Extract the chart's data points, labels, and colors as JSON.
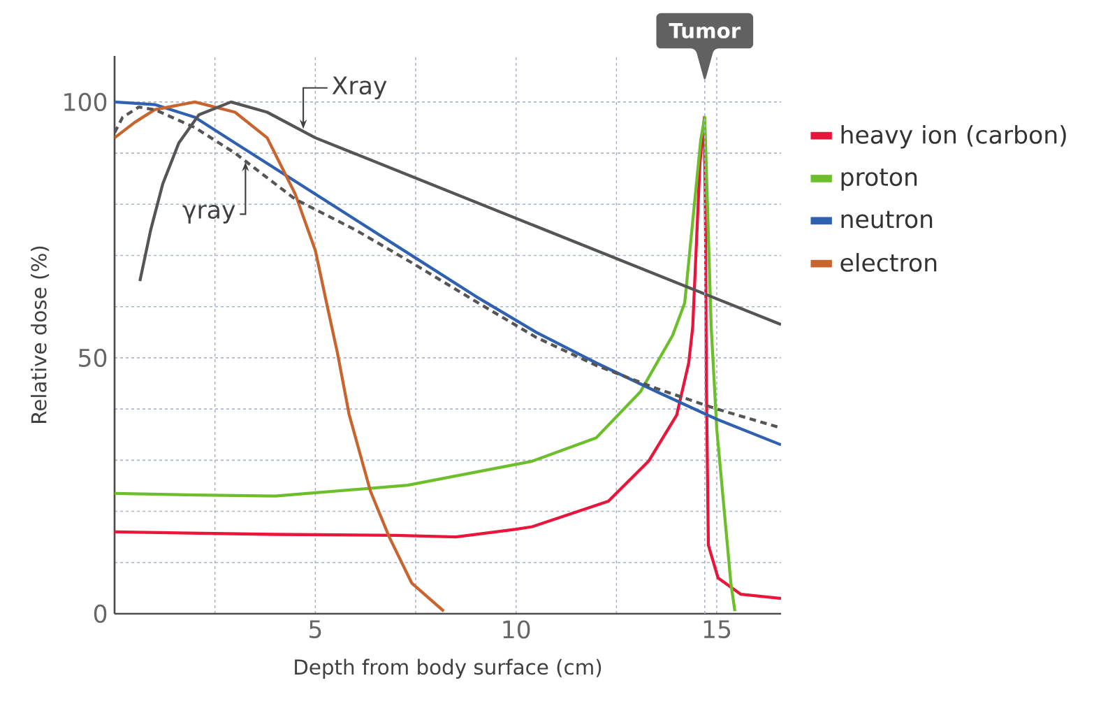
{
  "chart_data": {
    "type": "line",
    "xlabel": "Depth from body surface (cm)",
    "ylabel": "Relative dose (%)",
    "xlim": [
      0,
      16.6
    ],
    "ylim": [
      0,
      109
    ],
    "xticks": [
      {
        "value": 2.5,
        "label": null
      },
      5,
      {
        "value": 7.5,
        "label": null
      },
      10,
      {
        "value": 12.5,
        "label": null
      },
      15
    ],
    "yticks": [
      0,
      {
        "value": 10,
        "label": null
      },
      {
        "value": 20,
        "label": null
      },
      {
        "value": 30,
        "label": null
      },
      {
        "value": 40,
        "label": null
      },
      50,
      {
        "value": 60,
        "label": null
      },
      {
        "value": 70,
        "label": null
      },
      {
        "value": 80,
        "label": null
      },
      {
        "value": 90,
        "label": null
      },
      100
    ],
    "grid": true,
    "legend": "right",
    "marker": "none",
    "ref_lines": [
      {
        "axis": "x",
        "value": 14.7,
        "label": "Tumor",
        "color": "#aab4d2",
        "line_style": "dashed"
      }
    ],
    "series": [
      {
        "name": "heavy ion (carbon)",
        "color": "#e8163a",
        "x": [
          0,
          4,
          7,
          8.5,
          10,
          10.4,
          12.3,
          13.3,
          14.0,
          14.3,
          14.4,
          14.58,
          14.69,
          14.72,
          14.74,
          14.79,
          15.03,
          15.6,
          16.6
        ],
        "values": [
          16,
          15.5,
          15.3,
          15,
          16.5,
          17,
          22,
          29.8,
          38.8,
          49,
          56,
          88,
          97,
          74,
          45,
          13.4,
          7,
          3.8,
          3
        ]
      },
      {
        "name": "proton",
        "color": "#6cbf2a",
        "x": [
          0,
          2,
          4,
          7.3,
          10.4,
          12,
          13.1,
          13.9,
          14.2,
          14.6,
          14.7,
          14.86,
          15.0,
          15.35,
          15.45
        ],
        "values": [
          23.5,
          23.2,
          23,
          25.1,
          29.8,
          34.4,
          43.4,
          54.4,
          60.7,
          92.6,
          97,
          56,
          36,
          6,
          0.5
        ]
      },
      {
        "name": "neutron",
        "color": "#3060b0",
        "x": [
          0,
          1,
          2,
          3,
          4.5,
          6,
          7.5,
          9,
          10.5,
          12,
          13.5,
          15,
          16.6
        ],
        "values": [
          100,
          99.5,
          97,
          92,
          84.5,
          77,
          69.5,
          62,
          55,
          49,
          43.4,
          38,
          33
        ]
      },
      {
        "name": "electron",
        "color": "#c8642d",
        "x": [
          0,
          0.5,
          1,
          2,
          3,
          3.8,
          4.5,
          5,
          5.3,
          5.55,
          5.84,
          6.37,
          6.84,
          7.4,
          8.2
        ],
        "values": [
          93,
          96,
          98.5,
          100,
          98,
          93,
          82,
          71,
          60,
          51,
          39,
          24,
          15,
          6,
          0.5
        ]
      },
      {
        "color": "#555555",
        "x": [
          0.63,
          0.9,
          1.2,
          1.6,
          2.1,
          2.9,
          3.8,
          5,
          16.6
        ],
        "values": [
          65,
          75,
          84,
          92,
          97.5,
          100,
          98,
          93,
          56.5
        ]
      },
      {
        "color": "#555555",
        "line_style": "dashed",
        "x": [
          0,
          0.2,
          0.6,
          1,
          2,
          3,
          4.5,
          6,
          7.4,
          9,
          10.5,
          12,
          13.5,
          15,
          16.6
        ],
        "values": [
          94,
          97,
          99,
          98.5,
          95,
          90,
          81,
          75,
          68.6,
          61,
          54,
          48.5,
          44,
          40,
          36.3
        ]
      }
    ],
    "annotations": [
      {
        "text": "Xray",
        "x": 4.7,
        "y": 94
      },
      {
        "text": "γray",
        "x": 3.26,
        "y": 89
      }
    ]
  }
}
